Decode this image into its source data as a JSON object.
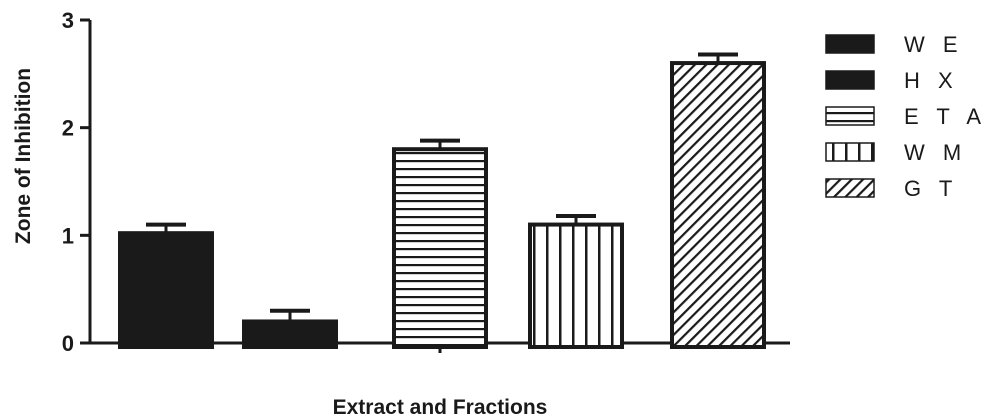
{
  "chart_data": {
    "type": "bar",
    "xlabel": "Extract and Fractions",
    "ylabel": "Zone of Inhibition",
    "ylim": [
      0,
      3
    ],
    "yticks": [
      "0",
      "1",
      "2",
      "3"
    ],
    "legend_position": "right",
    "series": [
      {
        "name": "W E",
        "value": 1.02,
        "error": 0.08,
        "pattern": "solid-dashed"
      },
      {
        "name": "H X",
        "value": 0.2,
        "error": 0.1,
        "pattern": "checker"
      },
      {
        "name": "E T A C",
        "value": 1.8,
        "error": 0.08,
        "pattern": "horizontal-lines"
      },
      {
        "name": "W M",
        "value": 1.1,
        "error": 0.08,
        "pattern": "vertical-lines"
      },
      {
        "name": "G T",
        "value": 2.6,
        "error": 0.08,
        "pattern": "diagonal-lines"
      }
    ]
  },
  "colors": {
    "ink": "#1a1a1a",
    "background": "#ffffff"
  }
}
